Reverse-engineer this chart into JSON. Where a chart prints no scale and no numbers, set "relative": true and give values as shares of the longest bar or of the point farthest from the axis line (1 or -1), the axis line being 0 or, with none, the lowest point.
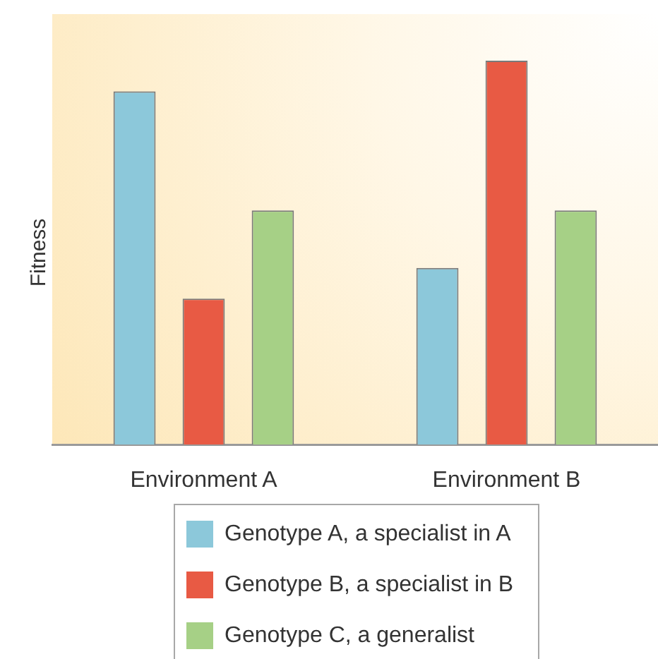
{
  "chart_data": {
    "type": "bar",
    "ylabel": "Fitness",
    "categories": [
      "Environment A",
      "Environment B"
    ],
    "relative": true,
    "legend": "bottom",
    "grid": false,
    "series": [
      {
        "name": "Genotype A, a specialist in A",
        "color": "#8cc8da",
        "values": [
          0.92,
          0.46
        ]
      },
      {
        "name": "Genotype B, a specialist in B",
        "color": "#e85a44",
        "values": [
          0.38,
          1
        ]
      },
      {
        "name": "Genotype C, a generalist",
        "color": "#a6d086",
        "values": [
          0.61,
          0.61
        ]
      }
    ]
  }
}
